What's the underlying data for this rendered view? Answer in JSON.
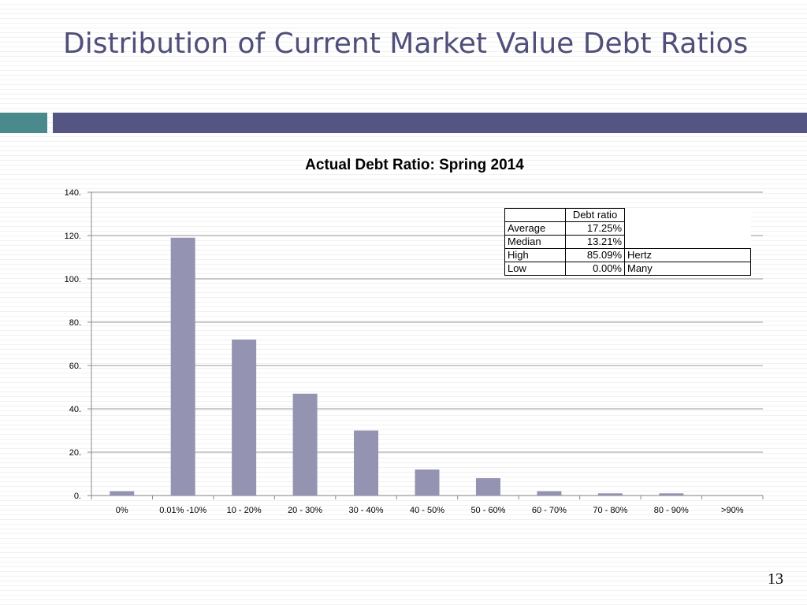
{
  "slide": {
    "title": "Distribution of Current Market Value Debt Ratios",
    "page_number": "13"
  },
  "colors": {
    "title": "#4f4f7a",
    "accent_bar": "#555584",
    "accent_teal": "#4a8a8c",
    "bar_fill": "#9494b2"
  },
  "chart_data": {
    "type": "bar",
    "title": "Actual Debt Ratio: Spring 2014",
    "categories": [
      "0%",
      "0.01% -10%",
      "10 - 20%",
      "20 - 30%",
      "30 - 40%",
      "40 - 50%",
      "50 - 60%",
      "60 - 70%",
      "70 - 80%",
      "80 - 90%",
      ">90%"
    ],
    "values": [
      2,
      119,
      72,
      47,
      30,
      12,
      8,
      2,
      1,
      1,
      0
    ],
    "ylim": [
      0,
      140
    ],
    "yticks": [
      0,
      20,
      40,
      60,
      80,
      100,
      120,
      140
    ],
    "ytick_labels": [
      "0.",
      "20.",
      "40.",
      "60.",
      "80.",
      "100.",
      "120.",
      "140."
    ],
    "grid": true,
    "legend": "none"
  },
  "stats_table": {
    "header": "Debt ratio",
    "rows": [
      {
        "label": "Average",
        "value": "17.25%",
        "name": ""
      },
      {
        "label": "Median",
        "value": "13.21%",
        "name": ""
      },
      {
        "label": "High",
        "value": "85.09%",
        "name": "Hertz"
      },
      {
        "label": "Low",
        "value": "0.00%",
        "name": "Many"
      }
    ]
  }
}
